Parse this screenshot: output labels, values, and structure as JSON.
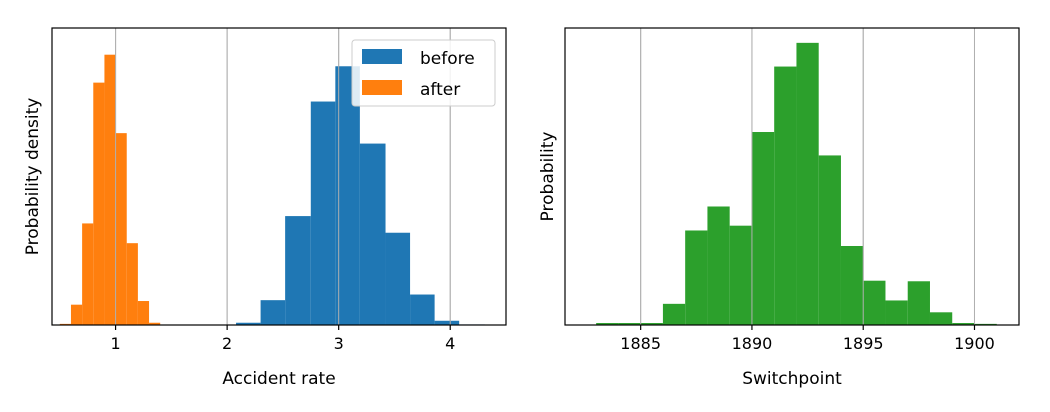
{
  "chart_data": [
    {
      "type": "bar",
      "subtype": "histogram",
      "xlabel": "Accident rate",
      "ylabel": "Probability density",
      "xlim": [
        0.43,
        4.5
      ],
      "ylim": [
        0,
        1
      ],
      "xticks": [
        1,
        2,
        3,
        4
      ],
      "xtick_labels": [
        "1",
        "2",
        "3",
        "4"
      ],
      "yticks_shown": false,
      "grid": "x",
      "legend": "top-right",
      "series": [
        {
          "name": "before",
          "color": "#1f77b4",
          "bins": [
            {
              "x0": 1.85,
              "x1": 2.08,
              "y": 0.0015
            },
            {
              "x0": 2.08,
              "x1": 2.3,
              "y": 0.008
            },
            {
              "x0": 2.3,
              "x1": 2.52,
              "y": 0.088
            },
            {
              "x0": 2.52,
              "x1": 2.75,
              "y": 0.386
            },
            {
              "x0": 2.75,
              "x1": 2.97,
              "y": 0.792
            },
            {
              "x0": 2.97,
              "x1": 3.19,
              "y": 0.917
            },
            {
              "x0": 3.19,
              "x1": 3.42,
              "y": 0.643
            },
            {
              "x0": 3.42,
              "x1": 3.64,
              "y": 0.327
            },
            {
              "x0": 3.64,
              "x1": 3.86,
              "y": 0.108
            },
            {
              "x0": 3.86,
              "x1": 4.08,
              "y": 0.015
            },
            {
              "x0": 4.08,
              "x1": 4.31,
              "y": 0.002
            }
          ]
        },
        {
          "name": "after",
          "color": "#ff7f0e",
          "bins": [
            {
              "x0": 0.5,
              "x1": 0.6,
              "y": 0.004
            },
            {
              "x0": 0.6,
              "x1": 0.7,
              "y": 0.072
            },
            {
              "x0": 0.7,
              "x1": 0.8,
              "y": 0.36
            },
            {
              "x0": 0.8,
              "x1": 0.9,
              "y": 0.859
            },
            {
              "x0": 0.9,
              "x1": 1.0,
              "y": 0.958
            },
            {
              "x0": 1.0,
              "x1": 1.1,
              "y": 0.68
            },
            {
              "x0": 1.1,
              "x1": 1.2,
              "y": 0.29
            },
            {
              "x0": 1.2,
              "x1": 1.3,
              "y": 0.085
            },
            {
              "x0": 1.3,
              "x1": 1.4,
              "y": 0.008
            }
          ]
        }
      ]
    },
    {
      "type": "bar",
      "subtype": "histogram",
      "xlabel": "Switchpoint",
      "ylabel": "Probability",
      "xlim": [
        1881.6,
        1902.0
      ],
      "ylim": [
        0,
        1
      ],
      "xticks": [
        1885,
        1890,
        1895,
        1900
      ],
      "xtick_labels": [
        "1885",
        "1890",
        "1895",
        "1900"
      ],
      "yticks_shown": false,
      "grid": "x",
      "series": [
        {
          "name": "",
          "color": "#2ca02c",
          "bins": [
            {
              "x0": 1883.0,
              "x1": 1884.0,
              "y": 0.007
            },
            {
              "x0": 1884.0,
              "x1": 1885.0,
              "y": 0.007
            },
            {
              "x0": 1885.0,
              "x1": 1886.0,
              "y": 0.007
            },
            {
              "x0": 1886.0,
              "x1": 1887.0,
              "y": 0.075
            },
            {
              "x0": 1887.0,
              "x1": 1888.0,
              "y": 0.335
            },
            {
              "x0": 1888.0,
              "x1": 1889.0,
              "y": 0.42
            },
            {
              "x0": 1889.0,
              "x1": 1890.0,
              "y": 0.352
            },
            {
              "x0": 1890.0,
              "x1": 1891.0,
              "y": 0.684
            },
            {
              "x0": 1891.0,
              "x1": 1892.0,
              "y": 0.916
            },
            {
              "x0": 1892.0,
              "x1": 1893.0,
              "y": 1.0
            },
            {
              "x0": 1893.0,
              "x1": 1894.0,
              "y": 0.601
            },
            {
              "x0": 1894.0,
              "x1": 1895.0,
              "y": 0.28
            },
            {
              "x0": 1895.0,
              "x1": 1896.0,
              "y": 0.157
            },
            {
              "x0": 1896.0,
              "x1": 1897.0,
              "y": 0.087
            },
            {
              "x0": 1897.0,
              "x1": 1898.0,
              "y": 0.155
            },
            {
              "x0": 1898.0,
              "x1": 1899.0,
              "y": 0.045
            },
            {
              "x0": 1899.0,
              "x1": 1900.0,
              "y": 0.007
            },
            {
              "x0": 1900.0,
              "x1": 1901.0,
              "y": 0.004
            }
          ]
        }
      ]
    }
  ]
}
